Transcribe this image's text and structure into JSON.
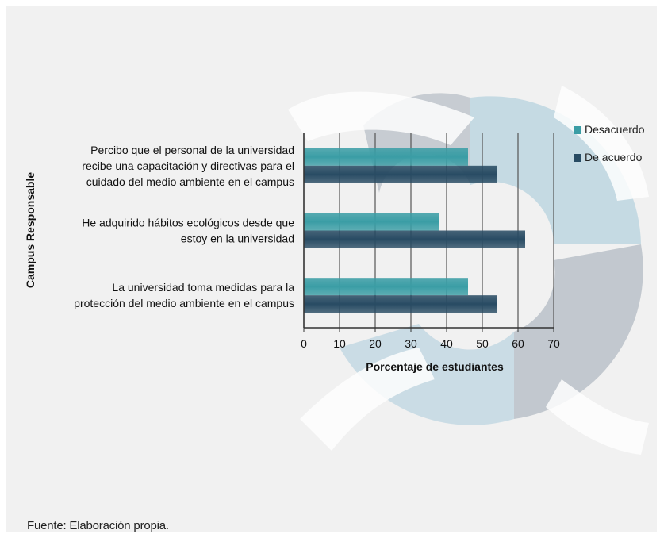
{
  "chart_data": {
    "type": "bar",
    "orientation": "horizontal",
    "title": "",
    "xlabel": "Porcentaje de estudiantes",
    "ylabel": "Campus Responsable",
    "xlim": [
      0,
      70
    ],
    "xticks": [
      "0",
      "10",
      "20",
      "30",
      "40",
      "50",
      "60",
      "70"
    ],
    "categories": [
      [
        "Percibo que el personal de la universidad",
        "recibe una capacitación y directivas para el",
        "cuidado del medio ambiente en el campus"
      ],
      [
        "He adquirido hábitos ecológicos desde que",
        "estoy en la universidad"
      ],
      [
        "La universidad toma medidas para la",
        "protección del medio ambiente en el campus"
      ]
    ],
    "series": [
      {
        "name": "Desacuerdo",
        "color": "#3a9da5",
        "values": [
          46,
          38,
          46
        ]
      },
      {
        "name": "De acuerdo",
        "color": "#284b63",
        "values": [
          54,
          62,
          54
        ]
      }
    ],
    "grid": true,
    "legend": "top-right"
  },
  "source": "Fuente: Elaboración propia."
}
